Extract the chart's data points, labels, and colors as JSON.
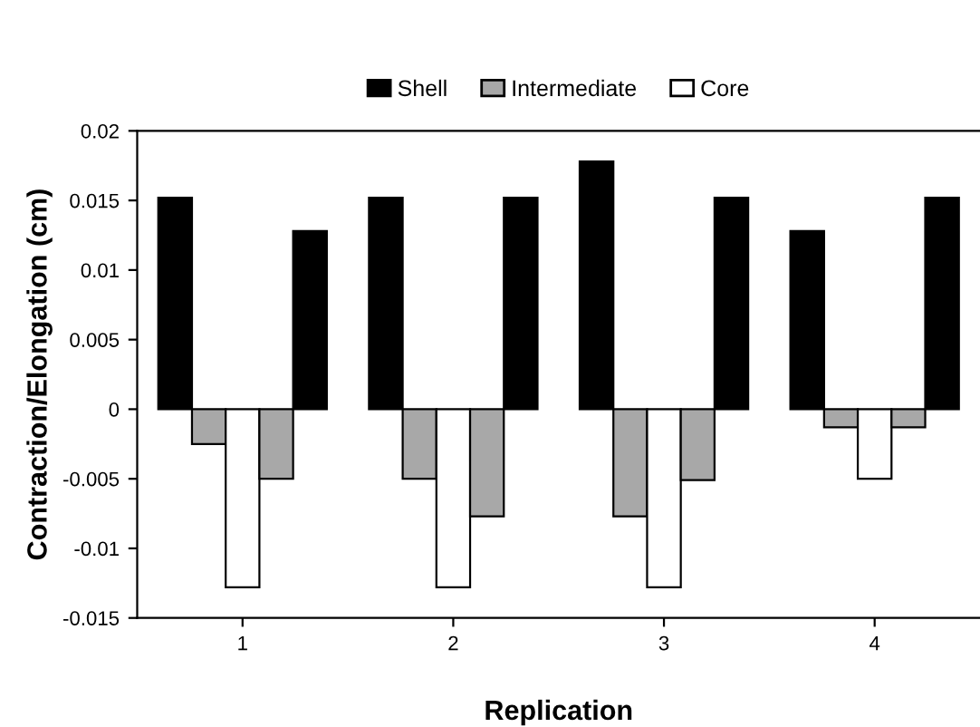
{
  "chart_data": {
    "type": "bar",
    "xlabel": "Replication",
    "ylabel": "Contraction/Elongation (cm)",
    "categories": [
      "1",
      "2",
      "3",
      "4"
    ],
    "series": [
      {
        "name": "Shell",
        "color": "#000000",
        "values": [
          0.0152,
          0.0152,
          0.0178,
          0.0128
        ]
      },
      {
        "name": "Intermediate",
        "color": "#a8a8a8",
        "values": [
          -0.0025,
          -0.005,
          -0.0077,
          -0.0013
        ]
      },
      {
        "name": "Core",
        "color": "#ffffff",
        "values": [
          -0.0128,
          -0.0128,
          -0.0128,
          -0.005
        ]
      },
      {
        "color": "#a8a8a8",
        "values": [
          -0.005,
          -0.0077,
          -0.0051,
          -0.0013
        ]
      },
      {
        "color": "#000000",
        "values": [
          0.0128,
          0.0152,
          0.0152,
          0.0152
        ]
      }
    ],
    "ylim": [
      -0.015,
      0.02
    ],
    "yticks": [
      {
        "value": -0.015,
        "label": "-0.015"
      },
      {
        "value": -0.01,
        "label": "-0.01"
      },
      {
        "value": -0.005,
        "label": "-0.005"
      },
      0,
      0.005,
      0.01,
      0.015,
      0.02
    ],
    "grid": false,
    "legend": "top"
  }
}
